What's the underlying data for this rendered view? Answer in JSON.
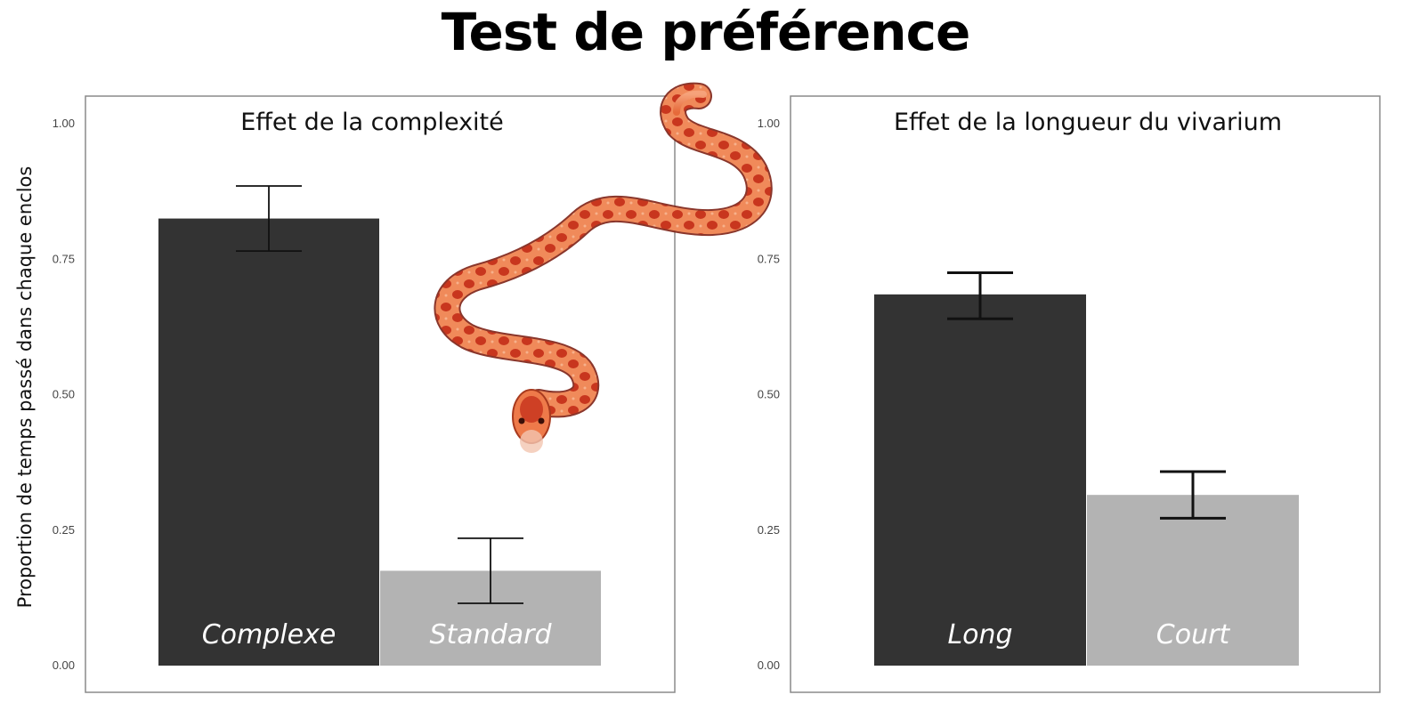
{
  "title": "Test de préférence",
  "ylabel": "Proportion de temps passé dans chaque enclos",
  "colors": {
    "dark_bar": "#333333",
    "light_bar": "#b3b3b3",
    "frame": "#8a8a8a"
  },
  "image": {
    "name": "corn-snake-image"
  },
  "chart_data": [
    {
      "type": "bar",
      "title": "Effet de la complexité",
      "categories": [
        "Complexe",
        "Standard"
      ],
      "values": [
        0.825,
        0.175
      ],
      "error_low": [
        0.765,
        0.115
      ],
      "error_high": [
        0.885,
        0.235
      ],
      "ylim": [
        0,
        1
      ],
      "yticks": [
        "0.00",
        "0.25",
        "0.50",
        "0.75",
        "1.00"
      ],
      "colors": [
        "#333333",
        "#b3b3b3"
      ],
      "grid": false
    },
    {
      "type": "bar",
      "title": "Effet de la longueur du vivarium",
      "categories": [
        "Long",
        "Court"
      ],
      "values": [
        0.685,
        0.315
      ],
      "error_low": [
        0.64,
        0.272
      ],
      "error_high": [
        0.725,
        0.358
      ],
      "ylim": [
        0,
        1
      ],
      "yticks": [
        "0.00",
        "0.25",
        "0.50",
        "0.75",
        "1.00"
      ],
      "colors": [
        "#333333",
        "#b3b3b3"
      ],
      "grid": false
    }
  ]
}
